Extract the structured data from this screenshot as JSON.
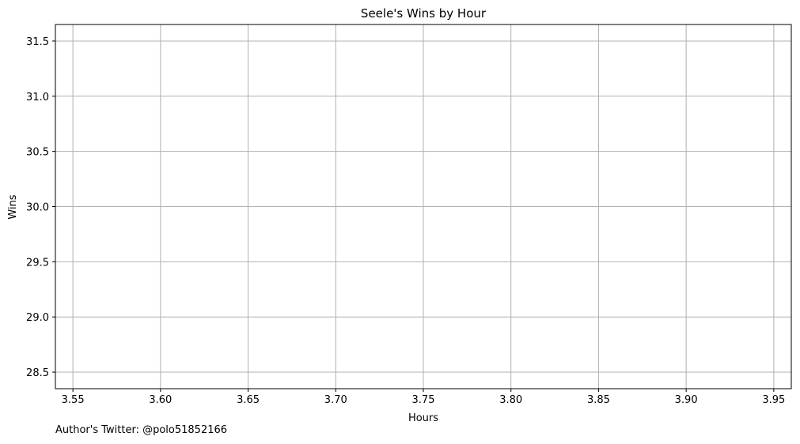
{
  "chart_data": {
    "type": "line",
    "title": "Seele's Wins by Hour",
    "xlabel": "Hours",
    "ylabel": "Wins",
    "xlim": [
      3.54,
      3.96
    ],
    "ylim": [
      28.35,
      31.65
    ],
    "xticks": [
      3.55,
      3.6,
      3.65,
      3.7,
      3.75,
      3.8,
      3.85,
      3.9,
      3.95
    ],
    "xtick_labels": [
      "3.55",
      "3.60",
      "3.65",
      "3.70",
      "3.75",
      "3.80",
      "3.85",
      "3.90",
      "3.95"
    ],
    "yticks": [
      28.5,
      29.0,
      29.5,
      30.0,
      30.5,
      31.0,
      31.5
    ],
    "ytick_labels": [
      "28.5",
      "29.0",
      "29.5",
      "30.0",
      "30.5",
      "31.0",
      "31.5"
    ],
    "grid": true,
    "grid_color": "#b0b0b0",
    "series": []
  },
  "footer": {
    "note": "Author's Twitter: @polo51852166"
  }
}
